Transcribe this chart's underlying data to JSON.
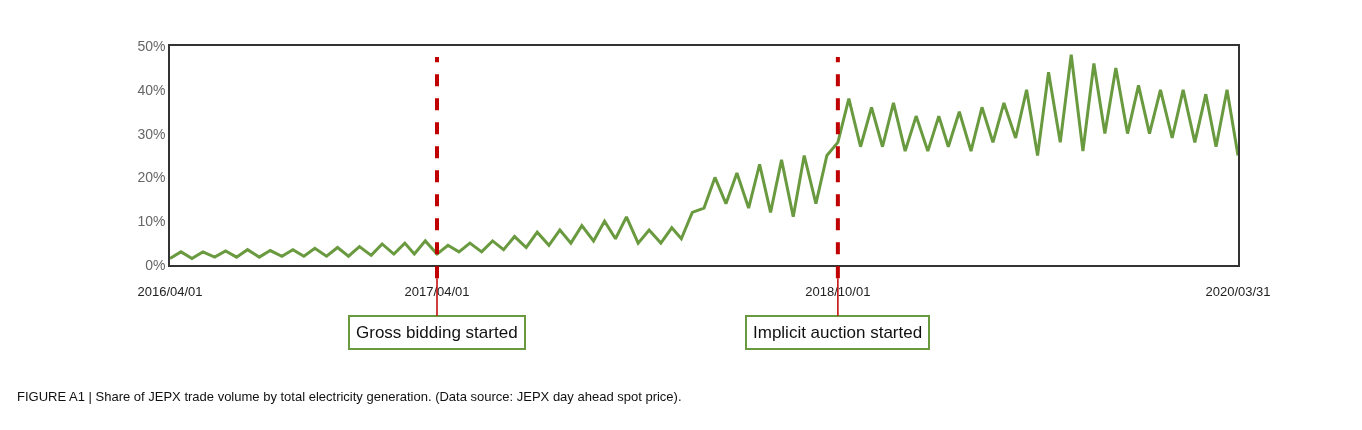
{
  "chart_data": {
    "type": "line",
    "xlim": [
      "2016-04-01",
      "2020-03-31"
    ],
    "xticks": [
      {
        "value": "2016-04-01",
        "label": "2016/04/01"
      },
      {
        "value": "2017-04-01",
        "label": "2017/04/01"
      },
      {
        "value": "2018-10-01",
        "label": "2018/10/01"
      },
      {
        "value": "2020-03-31",
        "label": "2020/03/31"
      }
    ],
    "ylim": [
      0,
      50
    ],
    "yticks": [
      {
        "value": 0,
        "label": "0%"
      },
      {
        "value": 10,
        "label": "10%"
      },
      {
        "value": 20,
        "label": "20%"
      },
      {
        "value": 30,
        "label": "30%"
      },
      {
        "value": 40,
        "label": "40%"
      },
      {
        "value": 50,
        "label": "50%"
      }
    ],
    "x": [
      "2016-04-01",
      "2016-04-16",
      "2016-05-01",
      "2016-05-16",
      "2016-06-01",
      "2016-06-16",
      "2016-07-01",
      "2016-07-16",
      "2016-08-01",
      "2016-08-16",
      "2016-09-01",
      "2016-09-16",
      "2016-10-01",
      "2016-10-16",
      "2016-11-01",
      "2016-11-16",
      "2016-12-01",
      "2016-12-16",
      "2017-01-01",
      "2017-01-16",
      "2017-02-01",
      "2017-02-16",
      "2017-03-01",
      "2017-03-16",
      "2017-04-01",
      "2017-04-16",
      "2017-05-01",
      "2017-05-16",
      "2017-06-01",
      "2017-06-16",
      "2017-07-01",
      "2017-07-16",
      "2017-08-01",
      "2017-08-16",
      "2017-09-01",
      "2017-09-16",
      "2017-10-01",
      "2017-10-16",
      "2017-11-01",
      "2017-11-16",
      "2017-12-01",
      "2017-12-16",
      "2018-01-01",
      "2018-01-16",
      "2018-02-01",
      "2018-02-16",
      "2018-03-01",
      "2018-03-16",
      "2018-04-01",
      "2018-04-16",
      "2018-05-01",
      "2018-05-16",
      "2018-06-01",
      "2018-06-16",
      "2018-07-01",
      "2018-07-16",
      "2018-08-01",
      "2018-08-16",
      "2018-09-01",
      "2018-09-16",
      "2018-10-01",
      "2018-10-16",
      "2018-11-01",
      "2018-11-16",
      "2018-12-01",
      "2018-12-16",
      "2019-01-01",
      "2019-01-16",
      "2019-02-01",
      "2019-02-16",
      "2019-03-01",
      "2019-03-16",
      "2019-04-01",
      "2019-04-16",
      "2019-05-01",
      "2019-05-16",
      "2019-06-01",
      "2019-06-16",
      "2019-07-01",
      "2019-07-16",
      "2019-08-01",
      "2019-08-16",
      "2019-09-01",
      "2019-09-16",
      "2019-10-01",
      "2019-10-16",
      "2019-11-01",
      "2019-11-16",
      "2019-12-01",
      "2019-12-16",
      "2020-01-01",
      "2020-01-16",
      "2020-02-01",
      "2020-02-16",
      "2020-03-01",
      "2020-03-16",
      "2020-03-31"
    ],
    "series": [
      {
        "color": "#6a9a3f",
        "values": [
          1.5,
          3,
          1.5,
          3,
          1.8,
          3.2,
          1.8,
          3.5,
          1.8,
          3.3,
          2,
          3.5,
          2,
          3.8,
          2,
          4,
          2,
          4.2,
          2.2,
          4.8,
          2.5,
          5,
          2.5,
          5.5,
          2.5,
          4.5,
          3,
          5,
          3,
          5.5,
          3.5,
          6.5,
          4,
          7.5,
          4.5,
          8,
          5,
          9,
          5.5,
          10,
          6,
          11,
          5,
          8,
          5,
          8.5,
          6,
          12,
          13,
          20,
          14,
          21,
          13,
          23,
          12,
          24,
          11,
          25,
          14,
          25,
          28,
          38,
          27,
          36,
          27,
          37,
          26,
          34,
          26,
          34,
          27,
          35,
          26,
          36,
          28,
          37,
          29,
          40,
          25,
          44,
          28,
          48,
          26,
          46,
          30,
          45,
          30,
          41,
          30,
          40,
          29,
          40,
          28,
          39,
          27,
          40,
          25
        ]
      }
    ],
    "ref_lines": [
      {
        "axis": "x",
        "value": "2017-04-01",
        "label": "Gross bidding started",
        "color": "#c00000",
        "line_style": "dashed"
      },
      {
        "axis": "x",
        "value": "2018-10-01",
        "label": "Implicit auction started",
        "color": "#c00000",
        "line_style": "dashed"
      }
    ],
    "annotations": [
      "FIGURE A1 | Share of JEPX trade volume by total electricity generation. (Data source: JEPX day ahead spot price)."
    ],
    "marker": "none",
    "line_style": "solid"
  }
}
